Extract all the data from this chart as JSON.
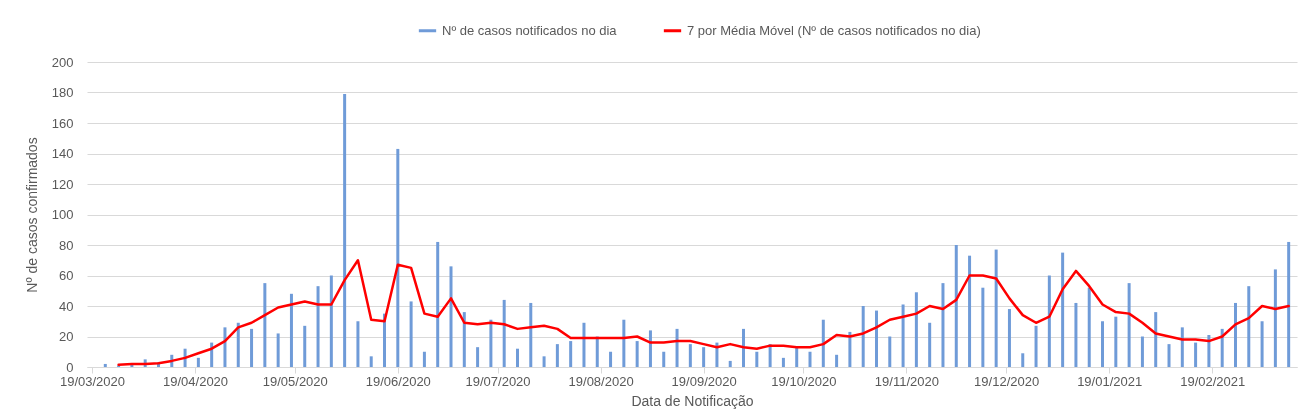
{
  "chart_data": {
    "type": "bar",
    "xlabel": "Data de Notificação",
    "ylabel": "Nº de casos confirmados",
    "x": [
      "2020-03-23",
      "2020-03-27",
      "2020-03-31",
      "2020-04-04",
      "2020-04-08",
      "2020-04-12",
      "2020-04-16",
      "2020-04-20",
      "2020-04-24",
      "2020-04-28",
      "2020-05-02",
      "2020-05-06",
      "2020-05-10",
      "2020-05-14",
      "2020-05-18",
      "2020-05-22",
      "2020-05-26",
      "2020-05-30",
      "2020-06-03",
      "2020-06-07",
      "2020-06-11",
      "2020-06-15",
      "2020-06-19",
      "2020-06-23",
      "2020-06-27",
      "2020-07-01",
      "2020-07-05",
      "2020-07-09",
      "2020-07-13",
      "2020-07-17",
      "2020-07-21",
      "2020-07-25",
      "2020-07-29",
      "2020-08-02",
      "2020-08-06",
      "2020-08-10",
      "2020-08-14",
      "2020-08-18",
      "2020-08-22",
      "2020-08-26",
      "2020-08-30",
      "2020-09-03",
      "2020-09-07",
      "2020-09-11",
      "2020-09-15",
      "2020-09-19",
      "2020-09-23",
      "2020-09-27",
      "2020-10-01",
      "2020-10-05",
      "2020-10-09",
      "2020-10-13",
      "2020-10-17",
      "2020-10-21",
      "2020-10-25",
      "2020-10-29",
      "2020-11-02",
      "2020-11-06",
      "2020-11-10",
      "2020-11-14",
      "2020-11-18",
      "2020-11-22",
      "2020-11-26",
      "2020-11-30",
      "2020-12-04",
      "2020-12-08",
      "2020-12-12",
      "2020-12-16",
      "2020-12-20",
      "2020-12-24",
      "2020-12-28",
      "2021-01-01",
      "2021-01-05",
      "2021-01-09",
      "2021-01-13",
      "2021-01-17",
      "2021-01-21",
      "2021-01-25",
      "2021-01-29",
      "2021-02-02",
      "2021-02-06",
      "2021-02-10",
      "2021-02-14",
      "2021-02-18",
      "2021-02-22",
      "2021-02-26",
      "2021-03-02",
      "2021-03-06",
      "2021-03-10",
      "2021-03-14"
    ],
    "series": [
      {
        "name": "Nº de casos notificados no dia",
        "color": "#6f9bd8",
        "values": [
          2,
          1,
          2,
          5,
          3,
          8,
          12,
          6,
          16,
          26,
          29,
          25,
          55,
          22,
          48,
          27,
          53,
          60,
          179,
          30,
          7,
          35,
          143,
          43,
          10,
          82,
          66,
          36,
          13,
          31,
          44,
          12,
          42,
          7,
          15,
          17,
          29,
          20,
          10,
          31,
          17,
          24,
          10,
          25,
          15,
          13,
          16,
          4,
          25,
          10,
          15,
          6,
          13,
          10,
          31,
          8,
          23,
          40,
          37,
          20,
          41,
          49,
          29,
          55,
          80,
          73,
          52,
          77,
          38,
          9,
          27,
          60,
          75,
          42,
          52,
          30,
          33,
          55,
          20,
          36,
          15,
          26,
          16,
          21,
          25,
          42,
          53,
          30,
          64,
          82
        ]
      },
      {
        "name": "7 por Média Móvel (Nº de casos notificados no dia)",
        "type": "line",
        "color": "#ff0000",
        "values": [
          null,
          1.5,
          2,
          2,
          2.5,
          4,
          6,
          9,
          12,
          17,
          26,
          29,
          34,
          39,
          41,
          43,
          41,
          41,
          57,
          70,
          31,
          30,
          67,
          65,
          35,
          33,
          45,
          29,
          28,
          29,
          28,
          25,
          26,
          27,
          25,
          19,
          19,
          19,
          19,
          19,
          20,
          16,
          16,
          17,
          17,
          15,
          13,
          15,
          13,
          12,
          14,
          14,
          13,
          13,
          15,
          21,
          20,
          22,
          26,
          31,
          33,
          35,
          40,
          38,
          44,
          60,
          60,
          58,
          45,
          34,
          29,
          33,
          51,
          63,
          53,
          41,
          36,
          35,
          29,
          22,
          20,
          18,
          18,
          17,
          20,
          28,
          32,
          40,
          38,
          40
        ]
      }
    ],
    "ylim": [
      0,
      200
    ],
    "yticks": [
      0,
      20,
      40,
      60,
      80,
      100,
      120,
      140,
      160,
      180,
      200
    ],
    "xlim": [
      "2020-03-19",
      "2021-03-15"
    ],
    "xticks": [
      {
        "value": "2020-03-19",
        "label": "19/03/2020"
      },
      {
        "value": "2020-04-19",
        "label": "19/04/2020"
      },
      {
        "value": "2020-05-19",
        "label": "19/05/2020"
      },
      {
        "value": "2020-06-19",
        "label": "19/06/2020"
      },
      {
        "value": "2020-07-19",
        "label": "19/07/2020"
      },
      {
        "value": "2020-08-19",
        "label": "19/08/2020"
      },
      {
        "value": "2020-09-19",
        "label": "19/09/2020"
      },
      {
        "value": "2020-10-19",
        "label": "19/10/2020"
      },
      {
        "value": "2020-11-19",
        "label": "19/11/2020"
      },
      {
        "value": "2020-12-19",
        "label": "19/12/2020"
      },
      {
        "value": "2021-01-19",
        "label": "19/01/2021"
      },
      {
        "value": "2021-02-19",
        "label": "19/02/2021"
      }
    ],
    "grid": "y",
    "legend": "top"
  }
}
